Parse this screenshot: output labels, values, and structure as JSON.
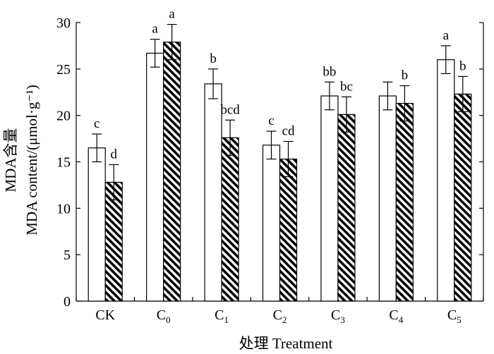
{
  "chart_data": {
    "type": "bar",
    "title": "",
    "xlabel": "处理 Treatment",
    "ylabel": [
      "MDA含量",
      "MDA content/(μmol·g⁻¹)"
    ],
    "ylim": [
      0,
      30
    ],
    "yticks": [
      0,
      5,
      10,
      15,
      20,
      25,
      30
    ],
    "categories": [
      {
        "main": "CK",
        "sub": ""
      },
      {
        "main": "C",
        "sub": "0"
      },
      {
        "main": "C",
        "sub": "1"
      },
      {
        "main": "C",
        "sub": "2"
      },
      {
        "main": "C",
        "sub": "3"
      },
      {
        "main": "C",
        "sub": "4"
      },
      {
        "main": "C",
        "sub": "5"
      }
    ],
    "series": [
      {
        "fill": "white",
        "values": [
          16.5,
          26.7,
          23.4,
          16.8,
          22.1,
          22.1,
          26.0
        ],
        "errors": [
          1.5,
          1.5,
          1.6,
          1.5,
          1.5,
          1.5,
          1.5
        ],
        "labels": [
          "c",
          "a",
          "b",
          "c",
          "bb",
          "",
          "a"
        ]
      },
      {
        "fill": "diagonal-hatch",
        "values": [
          12.8,
          27.9,
          17.6,
          15.3,
          20.1,
          21.3,
          22.3
        ],
        "errors": [
          1.9,
          1.9,
          1.9,
          1.9,
          1.9,
          1.9,
          1.9
        ],
        "labels": [
          "d",
          "a",
          "bcd",
          "cd",
          "bc",
          "b",
          "b"
        ]
      }
    ],
    "legend": "none",
    "grid": false
  }
}
